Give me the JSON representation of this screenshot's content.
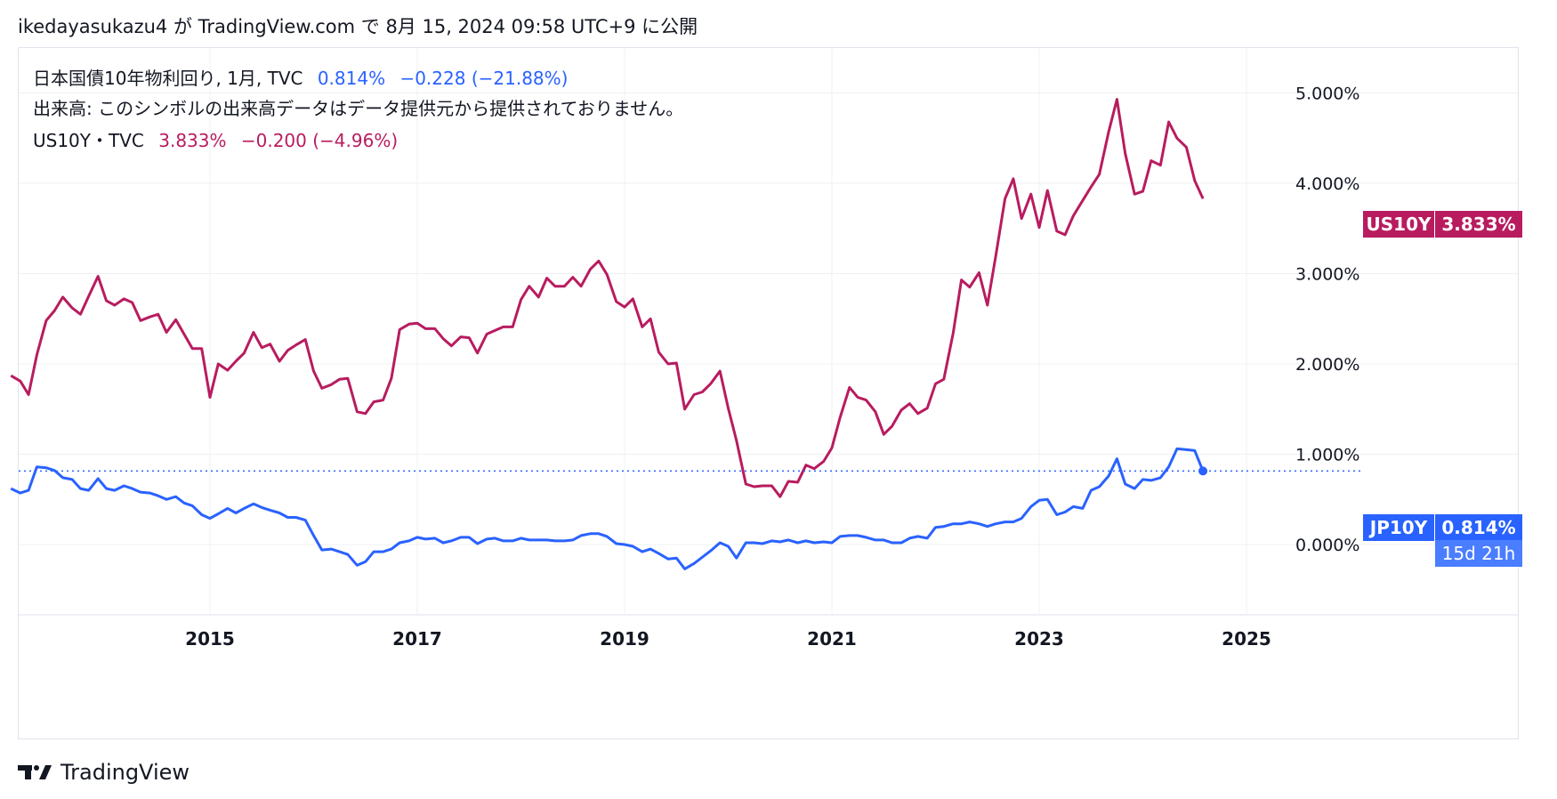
{
  "header": {
    "publish_line": "ikedayasukazu4 が TradingView.com で 8月 15, 2024 09:58 UTC+9 に公開"
  },
  "legend": {
    "jp_symbol": "日本国債10年物利回り, 1月, TVC",
    "jp_value": "0.814%",
    "jp_change": "−0.228 (−21.88%)",
    "volume_note": "出来高: このシンボルの出来高データはデータ提供元から提供されておりません。",
    "us_symbol": "US10Y・TVC",
    "us_value": "3.833%",
    "us_change": "−0.200 (−4.96%)"
  },
  "price_tags": {
    "us_label": "US10Y",
    "us_value": "3.833%",
    "jp_label": "JP10Y",
    "jp_value": "0.814%",
    "jp_countdown": "15d 21h"
  },
  "footer": {
    "brand": "TradingView"
  },
  "colors": {
    "us": "#b81c5f",
    "jp": "#2962ff",
    "grid": "#eef0f3",
    "axis_text": "#131722"
  },
  "chart_data": {
    "type": "line",
    "x_axis_ticks": [
      "2015",
      "2017",
      "2019",
      "2021",
      "2023",
      "2025"
    ],
    "y_axis_ticks": [
      "0.000%",
      "1.000%",
      "2.000%",
      "3.000%",
      "4.000%",
      "5.000%"
    ],
    "ylim": [
      -0.8,
      5.5
    ],
    "xlim": [
      2013.1,
      2025.6
    ],
    "grid": true,
    "series": [
      {
        "name": "US10Y",
        "color": "#b81c5f",
        "x": [
          2013.08,
          2013.17,
          2013.25,
          2013.33,
          2013.42,
          2013.5,
          2013.58,
          2013.67,
          2013.75,
          2013.83,
          2013.92,
          2014.0,
          2014.08,
          2014.17,
          2014.25,
          2014.33,
          2014.42,
          2014.5,
          2014.58,
          2014.67,
          2014.75,
          2014.83,
          2014.92,
          2015.0,
          2015.08,
          2015.17,
          2015.25,
          2015.33,
          2015.42,
          2015.5,
          2015.58,
          2015.67,
          2015.75,
          2015.83,
          2015.92,
          2016.0,
          2016.08,
          2016.17,
          2016.25,
          2016.33,
          2016.42,
          2016.5,
          2016.58,
          2016.67,
          2016.75,
          2016.83,
          2016.92,
          2017.0,
          2017.08,
          2017.17,
          2017.25,
          2017.33,
          2017.42,
          2017.5,
          2017.58,
          2017.67,
          2017.75,
          2017.83,
          2017.92,
          2018.0,
          2018.08,
          2018.17,
          2018.25,
          2018.33,
          2018.42,
          2018.5,
          2018.58,
          2018.67,
          2018.75,
          2018.83,
          2018.92,
          2019.0,
          2019.08,
          2019.17,
          2019.25,
          2019.33,
          2019.42,
          2019.5,
          2019.58,
          2019.67,
          2019.75,
          2019.83,
          2019.92,
          2020.0,
          2020.08,
          2020.17,
          2020.25,
          2020.33,
          2020.42,
          2020.5,
          2020.58,
          2020.67,
          2020.75,
          2020.83,
          2020.92,
          2021.0,
          2021.08,
          2021.17,
          2021.25,
          2021.33,
          2021.42,
          2021.5,
          2021.58,
          2021.67,
          2021.75,
          2021.83,
          2021.92,
          2022.0,
          2022.08,
          2022.17,
          2022.25,
          2022.33,
          2022.42,
          2022.5,
          2022.58,
          2022.67,
          2022.75,
          2022.83,
          2022.92,
          2023.0,
          2023.08,
          2023.17,
          2023.25,
          2023.33,
          2023.42,
          2023.5,
          2023.58,
          2023.67,
          2023.75,
          2023.83,
          2023.92,
          2024.0,
          2024.08,
          2024.17,
          2024.25,
          2024.33,
          2024.42,
          2024.5,
          2024.58
        ],
        "values": [
          1.87,
          1.81,
          1.66,
          2.1,
          2.48,
          2.59,
          2.74,
          2.62,
          2.55,
          2.75,
          2.97,
          2.7,
          2.65,
          2.72,
          2.68,
          2.48,
          2.52,
          2.55,
          2.35,
          2.49,
          2.33,
          2.17,
          2.17,
          1.63,
          2.0,
          1.93,
          2.03,
          2.12,
          2.35,
          2.18,
          2.22,
          2.03,
          2.15,
          2.21,
          2.27,
          1.92,
          1.73,
          1.77,
          1.83,
          1.84,
          1.47,
          1.45,
          1.58,
          1.6,
          1.84,
          2.38,
          2.44,
          2.45,
          2.39,
          2.39,
          2.28,
          2.2,
          2.3,
          2.29,
          2.12,
          2.33,
          2.37,
          2.41,
          2.41,
          2.71,
          2.86,
          2.74,
          2.95,
          2.86,
          2.86,
          2.96,
          2.86,
          3.05,
          3.14,
          2.99,
          2.69,
          2.63,
          2.72,
          2.41,
          2.5,
          2.13,
          2.0,
          2.01,
          1.5,
          1.66,
          1.69,
          1.78,
          1.92,
          1.51,
          1.15,
          0.67,
          0.64,
          0.65,
          0.65,
          0.53,
          0.7,
          0.69,
          0.88,
          0.84,
          0.92,
          1.07,
          1.41,
          1.74,
          1.63,
          1.6,
          1.47,
          1.22,
          1.31,
          1.49,
          1.56,
          1.45,
          1.51,
          1.78,
          1.83,
          2.34,
          2.93,
          2.85,
          3.01,
          2.65,
          3.19,
          3.83,
          4.05,
          3.61,
          3.88,
          3.51,
          3.92,
          3.47,
          3.43,
          3.64,
          3.81,
          3.96,
          4.1,
          4.57,
          4.93,
          4.33,
          3.88,
          3.91,
          4.25,
          4.2,
          4.68,
          4.5,
          4.4,
          4.03,
          3.83
        ]
      },
      {
        "name": "JP10Y",
        "color": "#2962ff",
        "x": [
          2013.08,
          2013.17,
          2013.25,
          2013.33,
          2013.42,
          2013.5,
          2013.58,
          2013.67,
          2013.75,
          2013.83,
          2013.92,
          2014.0,
          2014.08,
          2014.17,
          2014.25,
          2014.33,
          2014.42,
          2014.5,
          2014.58,
          2014.67,
          2014.75,
          2014.83,
          2014.92,
          2015.0,
          2015.08,
          2015.17,
          2015.25,
          2015.33,
          2015.42,
          2015.5,
          2015.58,
          2015.67,
          2015.75,
          2015.83,
          2015.92,
          2016.0,
          2016.08,
          2016.17,
          2016.25,
          2016.33,
          2016.42,
          2016.5,
          2016.58,
          2016.67,
          2016.75,
          2016.83,
          2016.92,
          2017.0,
          2017.08,
          2017.17,
          2017.25,
          2017.33,
          2017.42,
          2017.5,
          2017.58,
          2017.67,
          2017.75,
          2017.83,
          2017.92,
          2018.0,
          2018.08,
          2018.17,
          2018.25,
          2018.33,
          2018.42,
          2018.5,
          2018.58,
          2018.67,
          2018.75,
          2018.83,
          2018.92,
          2019.0,
          2019.08,
          2019.17,
          2019.25,
          2019.33,
          2019.42,
          2019.5,
          2019.58,
          2019.67,
          2019.75,
          2019.83,
          2019.92,
          2020.0,
          2020.08,
          2020.17,
          2020.25,
          2020.33,
          2020.42,
          2020.5,
          2020.58,
          2020.67,
          2020.75,
          2020.83,
          2020.92,
          2021.0,
          2021.08,
          2021.17,
          2021.25,
          2021.33,
          2021.42,
          2021.5,
          2021.58,
          2021.67,
          2021.75,
          2021.83,
          2021.92,
          2022.0,
          2022.08,
          2022.17,
          2022.25,
          2022.33,
          2022.42,
          2022.5,
          2022.58,
          2022.67,
          2022.75,
          2022.83,
          2022.92,
          2023.0,
          2023.08,
          2023.17,
          2023.25,
          2023.33,
          2023.42,
          2023.5,
          2023.58,
          2023.67,
          2023.75,
          2023.83,
          2023.92,
          2024.0,
          2024.08,
          2024.17,
          2024.25,
          2024.33,
          2024.42,
          2024.5,
          2024.58
        ],
        "values": [
          0.62,
          0.57,
          0.6,
          0.86,
          0.85,
          0.82,
          0.74,
          0.72,
          0.62,
          0.6,
          0.73,
          0.62,
          0.6,
          0.65,
          0.62,
          0.58,
          0.57,
          0.54,
          0.5,
          0.53,
          0.46,
          0.43,
          0.33,
          0.29,
          0.34,
          0.4,
          0.35,
          0.4,
          0.45,
          0.41,
          0.38,
          0.35,
          0.3,
          0.3,
          0.27,
          0.1,
          -0.06,
          -0.05,
          -0.08,
          -0.11,
          -0.23,
          -0.19,
          -0.08,
          -0.08,
          -0.05,
          0.02,
          0.04,
          0.08,
          0.06,
          0.07,
          0.02,
          0.04,
          0.08,
          0.08,
          0.01,
          0.06,
          0.07,
          0.04,
          0.04,
          0.07,
          0.05,
          0.05,
          0.05,
          0.04,
          0.04,
          0.05,
          0.1,
          0.12,
          0.12,
          0.09,
          0.01,
          0.0,
          -0.02,
          -0.08,
          -0.05,
          -0.1,
          -0.16,
          -0.15,
          -0.27,
          -0.21,
          -0.14,
          -0.07,
          0.02,
          -0.02,
          -0.15,
          0.02,
          0.02,
          0.01,
          0.04,
          0.03,
          0.05,
          0.02,
          0.04,
          0.02,
          0.03,
          0.02,
          0.09,
          0.1,
          0.1,
          0.08,
          0.05,
          0.05,
          0.02,
          0.02,
          0.07,
          0.09,
          0.07,
          0.19,
          0.2,
          0.23,
          0.23,
          0.25,
          0.23,
          0.2,
          0.23,
          0.25,
          0.25,
          0.29,
          0.42,
          0.49,
          0.5,
          0.33,
          0.36,
          0.42,
          0.4,
          0.6,
          0.64,
          0.76,
          0.95,
          0.67,
          0.62,
          0.72,
          0.71,
          0.74,
          0.86,
          1.06,
          1.05,
          1.04,
          0.814
        ]
      }
    ]
  }
}
